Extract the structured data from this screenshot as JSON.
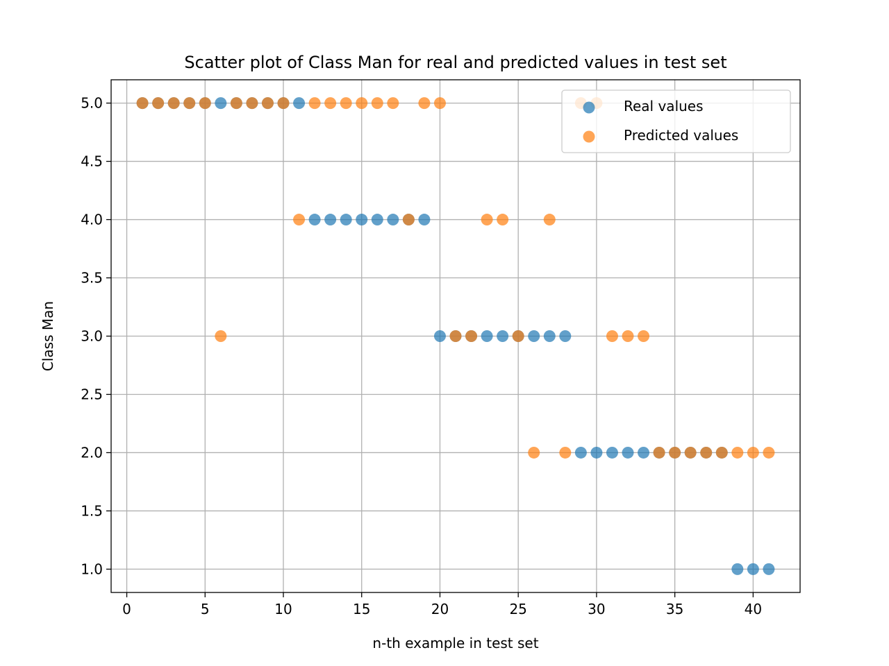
{
  "chart_data": {
    "type": "scatter",
    "title": "Scatter plot of Class Man for real and predicted values in test set",
    "xlabel": "n-th example in test set",
    "ylabel": "Class Man",
    "xlim": [
      -1,
      43
    ],
    "ylim": [
      0.8,
      5.2
    ],
    "x_ticks": [
      0,
      5,
      10,
      15,
      20,
      25,
      30,
      35,
      40
    ],
    "x_tick_labels": [
      "0",
      "5",
      "10",
      "15",
      "20",
      "25",
      "30",
      "35",
      "40"
    ],
    "y_ticks": [
      1.0,
      1.5,
      2.0,
      2.5,
      3.0,
      3.5,
      4.0,
      4.5,
      5.0
    ],
    "y_tick_labels": [
      "1.0",
      "1.5",
      "2.0",
      "2.5",
      "3.0",
      "3.5",
      "4.0",
      "4.5",
      "5.0"
    ],
    "grid": true,
    "legend_position": "top-right",
    "series": [
      {
        "name": "Real values",
        "color": "#1f77b4",
        "x": [
          1,
          2,
          3,
          4,
          5,
          6,
          7,
          8,
          9,
          10,
          11,
          12,
          13,
          14,
          15,
          16,
          17,
          18,
          19,
          20,
          21,
          22,
          23,
          24,
          25,
          26,
          27,
          28,
          29,
          30,
          31,
          32,
          33,
          34,
          35,
          36,
          37,
          38,
          39,
          40,
          41
        ],
        "y": [
          5,
          5,
          5,
          5,
          5,
          5,
          5,
          5,
          5,
          5,
          5,
          4,
          4,
          4,
          4,
          4,
          4,
          4,
          4,
          3,
          3,
          3,
          3,
          3,
          3,
          3,
          3,
          3,
          2,
          2,
          2,
          2,
          2,
          2,
          2,
          2,
          2,
          2,
          1,
          1,
          1
        ]
      },
      {
        "name": "Predicted values",
        "color": "#ff7f0e",
        "x": [
          1,
          2,
          3,
          4,
          5,
          6,
          7,
          8,
          9,
          10,
          11,
          12,
          13,
          14,
          15,
          16,
          17,
          18,
          19,
          20,
          21,
          22,
          23,
          24,
          25,
          26,
          27,
          28,
          29,
          30,
          31,
          32,
          33,
          34,
          35,
          36,
          37,
          38,
          39,
          40,
          41
        ],
        "y": [
          5,
          5,
          5,
          5,
          5,
          3,
          5,
          5,
          5,
          5,
          4,
          5,
          5,
          5,
          5,
          5,
          5,
          4,
          5,
          5,
          3,
          3,
          4,
          4,
          3,
          2,
          4,
          2,
          5,
          5,
          3,
          3,
          3,
          2,
          2,
          2,
          2,
          2,
          2,
          2,
          2
        ]
      }
    ]
  }
}
